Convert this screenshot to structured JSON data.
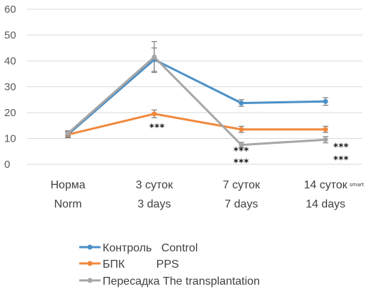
{
  "chart_data": {
    "type": "line",
    "categories": [
      {
        "line1": "Норма",
        "line2": "Norm"
      },
      {
        "line1": "3 суток",
        "line2": "3 days"
      },
      {
        "line1": "7 суток",
        "line2": "7 days"
      },
      {
        "line1": "14 суток",
        "line2": "14 days"
      }
    ],
    "ylim": [
      0,
      60
    ],
    "yticks": [
      0,
      10,
      20,
      30,
      40,
      50,
      60
    ],
    "grid": true,
    "legend_position": "bottom",
    "series": [
      {
        "name": "Контроль   Control",
        "color": "#4a90c8",
        "values": [
          11.5,
          40.5,
          23.7,
          24.3
        ],
        "errors": [
          1.2,
          4.5,
          1.3,
          1.5
        ]
      },
      {
        "name": "БПК          PPS",
        "color": "#f0883a",
        "values": [
          11.5,
          19.5,
          13.5,
          13.5
        ],
        "errors": [
          1.0,
          1.5,
          1.2,
          1.2
        ]
      },
      {
        "name": "Пересадка The transplantation",
        "color": "#a6a6a6",
        "values": [
          12.0,
          41.5,
          7.5,
          9.5
        ],
        "errors": [
          1.0,
          6.0,
          1.0,
          1.2
        ]
      }
    ],
    "annotations": [
      {
        "text": "***",
        "category": 1,
        "value": 13
      },
      {
        "text": "***",
        "category": 2,
        "value": 4
      },
      {
        "text": "***",
        "category": 2,
        "value": -0.5
      },
      {
        "text": "***",
        "category": 3,
        "value": 5.5
      },
      {
        "text": "***",
        "category": 3,
        "value": 0.5
      }
    ],
    "corner_mark": "smart"
  }
}
